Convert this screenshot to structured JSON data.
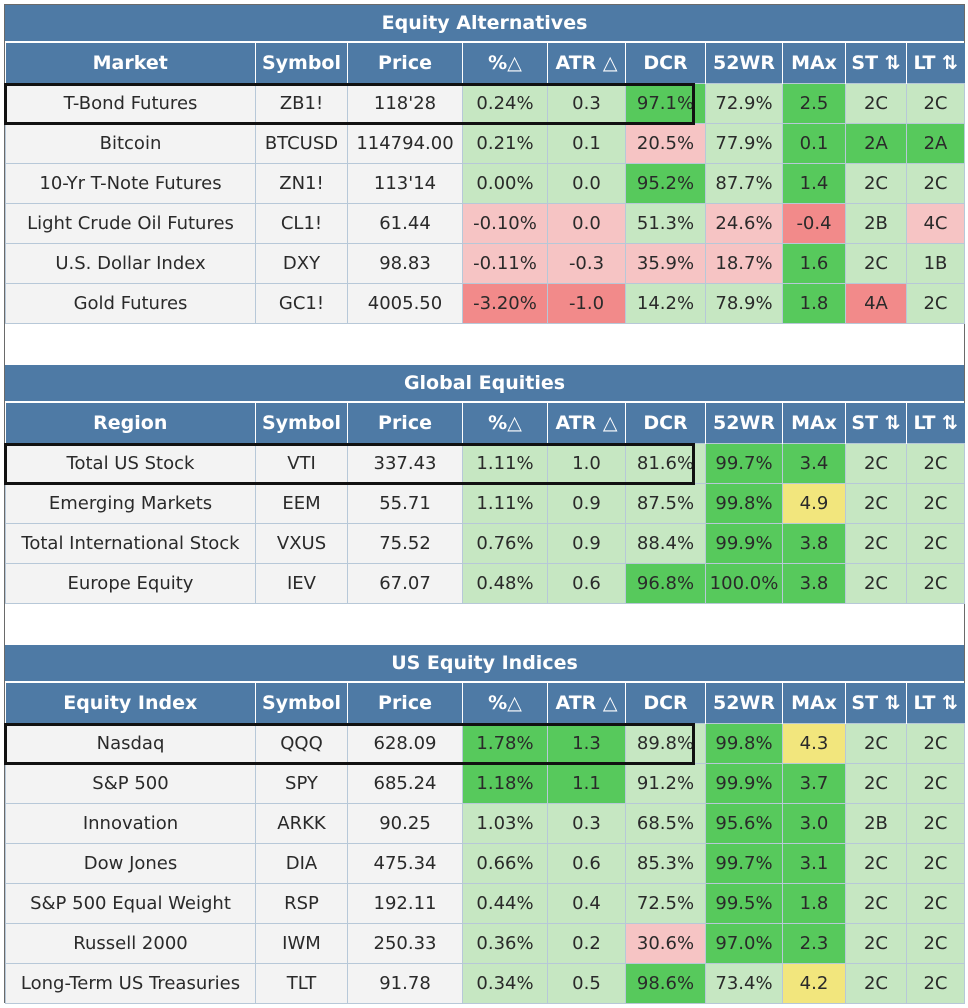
{
  "sections": [
    {
      "title": "Equity Alternatives",
      "headers": [
        "Market",
        "Symbol",
        "Price",
        "%△",
        "ATR △",
        "DCR",
        "52WR",
        "MAx",
        "ST ⇅",
        "LT ⇅"
      ],
      "rows": [
        [
          "T-Bond Futures",
          "ZB1!",
          "118'28",
          "0.24%",
          "0.3",
          "97.1%",
          "72.9%",
          "2.5",
          "2C",
          "2C"
        ],
        [
          "Bitcoin",
          "BTCUSD",
          "114794.00",
          "0.21%",
          "0.1",
          "20.5%",
          "77.9%",
          "0.1",
          "2A",
          "2A"
        ],
        [
          "10-Yr T-Note Futures",
          "ZN1!",
          "113'14",
          "0.00%",
          "0.0",
          "95.2%",
          "87.7%",
          "1.4",
          "2C",
          "2C"
        ],
        [
          "Light Crude Oil Futures",
          "CL1!",
          "61.44",
          "-0.10%",
          "0.0",
          "51.3%",
          "24.6%",
          "-0.4",
          "2B",
          "4C"
        ],
        [
          "U.S. Dollar Index",
          "DXY",
          "98.83",
          "-0.11%",
          "-0.3",
          "35.9%",
          "18.7%",
          "1.6",
          "2C",
          "1B"
        ],
        [
          "Gold Futures",
          "GC1!",
          "4005.50",
          "-3.20%",
          "-1.0",
          "14.2%",
          "78.9%",
          "1.8",
          "4A",
          "2C"
        ]
      ],
      "shading": [
        [
          "plain",
          "plain",
          "plain",
          "g1",
          "g1",
          "g2",
          "g1",
          "g2",
          "g1",
          "g1"
        ],
        [
          "plain",
          "plain",
          "plain",
          "g1",
          "g1",
          "r1",
          "g1",
          "g2",
          "g2",
          "g2"
        ],
        [
          "plain",
          "plain",
          "plain",
          "g1",
          "g1",
          "g2",
          "g1",
          "g2",
          "g1",
          "g1"
        ],
        [
          "plain",
          "plain",
          "plain",
          "r1",
          "r1",
          "g1",
          "r1",
          "r2",
          "g1",
          "r1"
        ],
        [
          "plain",
          "plain",
          "plain",
          "r1",
          "r1",
          "r1",
          "r1",
          "g2",
          "g1",
          "g1"
        ],
        [
          "plain",
          "plain",
          "plain",
          "r2",
          "r2",
          "g1",
          "g1",
          "g2",
          "r2",
          "g1"
        ]
      ]
    },
    {
      "title": "Global Equities",
      "headers": [
        "Region",
        "Symbol",
        "Price",
        "%△",
        "ATR △",
        "DCR",
        "52WR",
        "MAx",
        "ST ⇅",
        "LT ⇅"
      ],
      "rows": [
        [
          "Total US Stock",
          "VTI",
          "337.43",
          "1.11%",
          "1.0",
          "81.6%",
          "99.7%",
          "3.4",
          "2C",
          "2C"
        ],
        [
          "Emerging Markets",
          "EEM",
          "55.71",
          "1.11%",
          "0.9",
          "87.5%",
          "99.8%",
          "4.9",
          "2C",
          "2C"
        ],
        [
          "Total International Stock",
          "VXUS",
          "75.52",
          "0.76%",
          "0.9",
          "88.4%",
          "99.9%",
          "3.8",
          "2C",
          "2C"
        ],
        [
          "Europe Equity",
          "IEV",
          "67.07",
          "0.48%",
          "0.6",
          "96.8%",
          "100.0%",
          "3.8",
          "2C",
          "2C"
        ]
      ],
      "shading": [
        [
          "plain",
          "plain",
          "plain",
          "g1",
          "g1",
          "g1",
          "g2",
          "g2",
          "g1",
          "g1"
        ],
        [
          "plain",
          "plain",
          "plain",
          "g1",
          "g1",
          "g1",
          "g2",
          "y1",
          "g1",
          "g1"
        ],
        [
          "plain",
          "plain",
          "plain",
          "g1",
          "g1",
          "g1",
          "g2",
          "g2",
          "g1",
          "g1"
        ],
        [
          "plain",
          "plain",
          "plain",
          "g1",
          "g1",
          "g2",
          "g2",
          "g2",
          "g1",
          "g1"
        ]
      ]
    },
    {
      "title": "US Equity Indices",
      "headers": [
        "Equity Index",
        "Symbol",
        "Price",
        "%△",
        "ATR △",
        "DCR",
        "52WR",
        "MAx",
        "ST ⇅",
        "LT ⇅"
      ],
      "rows": [
        [
          "Nasdaq",
          "QQQ",
          "628.09",
          "1.78%",
          "1.3",
          "89.8%",
          "99.8%",
          "4.3",
          "2C",
          "2C"
        ],
        [
          "S&P 500",
          "SPY",
          "685.24",
          "1.18%",
          "1.1",
          "91.2%",
          "99.9%",
          "3.7",
          "2C",
          "2C"
        ],
        [
          "Innovation",
          "ARKK",
          "90.25",
          "1.03%",
          "0.3",
          "68.5%",
          "95.6%",
          "3.0",
          "2B",
          "2C"
        ],
        [
          "Dow Jones",
          "DIA",
          "475.34",
          "0.66%",
          "0.6",
          "85.3%",
          "99.7%",
          "3.1",
          "2C",
          "2C"
        ],
        [
          "S&P 500 Equal Weight",
          "RSP",
          "192.11",
          "0.44%",
          "0.4",
          "72.5%",
          "99.5%",
          "1.8",
          "2C",
          "2C"
        ],
        [
          "Russell 2000",
          "IWM",
          "250.33",
          "0.36%",
          "0.2",
          "30.6%",
          "97.0%",
          "2.3",
          "2C",
          "2C"
        ],
        [
          "Long-Term US Treasuries",
          "TLT",
          "91.78",
          "0.34%",
          "0.5",
          "98.6%",
          "73.4%",
          "4.2",
          "2C",
          "2C"
        ]
      ],
      "shading": [
        [
          "plain",
          "plain",
          "plain",
          "g2",
          "g2",
          "g1",
          "g2",
          "y1",
          "g1",
          "g1"
        ],
        [
          "plain",
          "plain",
          "plain",
          "g2",
          "g2",
          "g1",
          "g2",
          "g2",
          "g1",
          "g1"
        ],
        [
          "plain",
          "plain",
          "plain",
          "g1",
          "g1",
          "g1",
          "g2",
          "g2",
          "g1",
          "g1"
        ],
        [
          "plain",
          "plain",
          "plain",
          "g1",
          "g1",
          "g1",
          "g2",
          "g2",
          "g1",
          "g1"
        ],
        [
          "plain",
          "plain",
          "plain",
          "g1",
          "g1",
          "g1",
          "g2",
          "g2",
          "g1",
          "g1"
        ],
        [
          "plain",
          "plain",
          "plain",
          "g1",
          "g1",
          "r1",
          "g2",
          "g2",
          "g1",
          "g1"
        ],
        [
          "plain",
          "plain",
          "plain",
          "g1",
          "g1",
          "g2",
          "g1",
          "y1",
          "g1",
          "g1"
        ]
      ]
    }
  ]
}
